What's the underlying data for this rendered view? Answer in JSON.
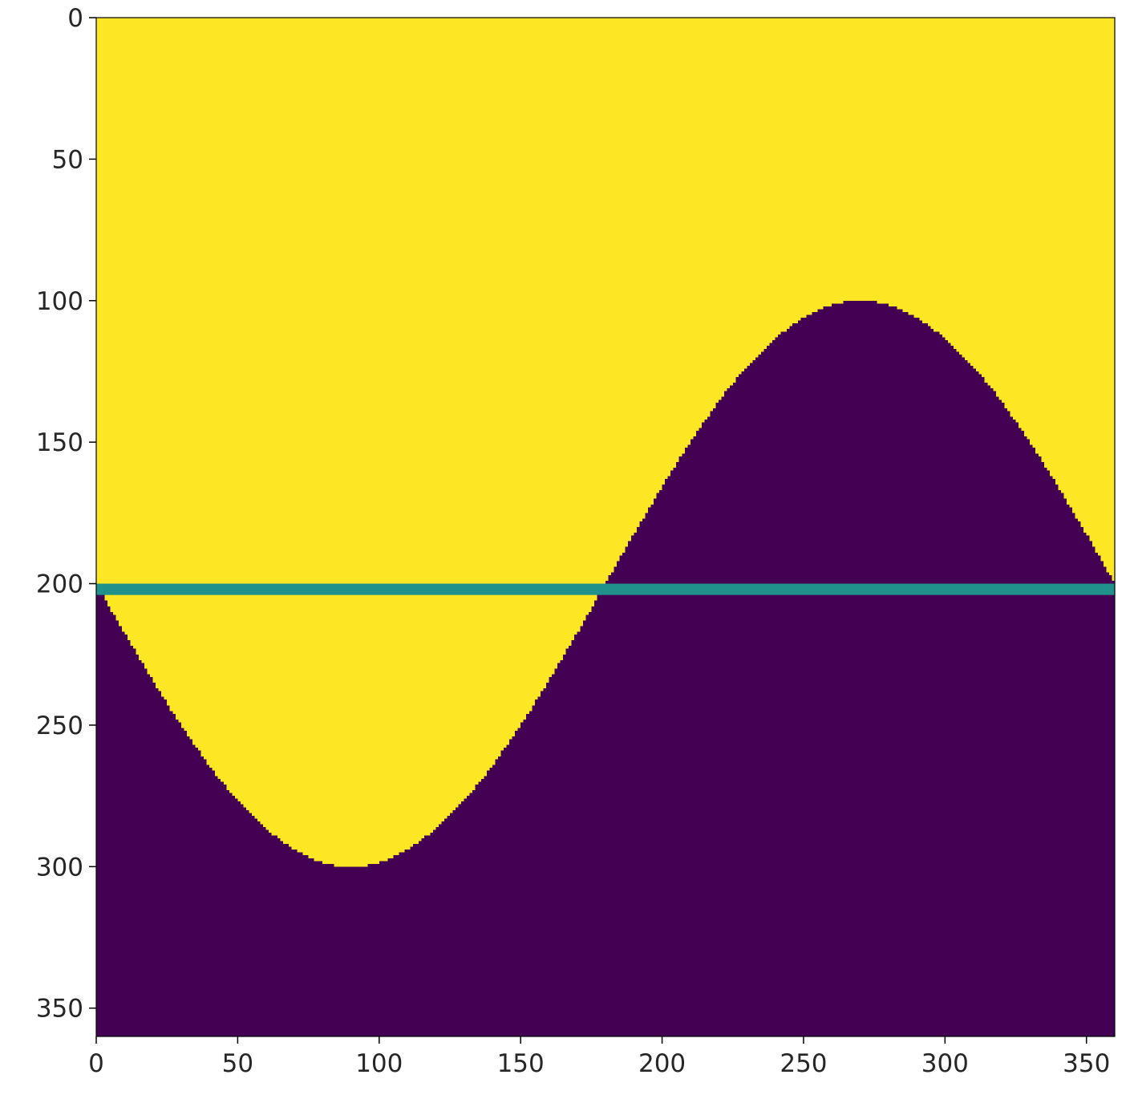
{
  "chart_data": {
    "type": "heatmap",
    "title": "",
    "xlabel": "",
    "ylabel": "",
    "image_shape": [
      360,
      360
    ],
    "xlim": [
      0,
      360
    ],
    "ylim": [
      360,
      0
    ],
    "x_ticks": [
      0,
      50,
      100,
      150,
      200,
      250,
      300,
      350
    ],
    "x_tick_labels": [
      "0",
      "50",
      "100",
      "150",
      "200",
      "250",
      "300",
      "350"
    ],
    "y_ticks": [
      0,
      50,
      100,
      150,
      200,
      250,
      300,
      350
    ],
    "y_tick_labels": [
      "0",
      "50",
      "100",
      "150",
      "200",
      "250",
      "300",
      "350"
    ],
    "colormap": "viridis",
    "colors": {
      "above_curve": "#fde725",
      "below_curve": "#440154",
      "baseline": "#21918c"
    },
    "curve": {
      "function": "y = 200 + 100*sin(x deg)",
      "center_row": 200,
      "amplitude": 100,
      "period_deg": 360,
      "min_row": 100,
      "min_row_at_x": 270,
      "max_row": 300,
      "max_row_at_x": 90
    },
    "baseline": {
      "row_start": 200,
      "row_end": 204
    }
  }
}
